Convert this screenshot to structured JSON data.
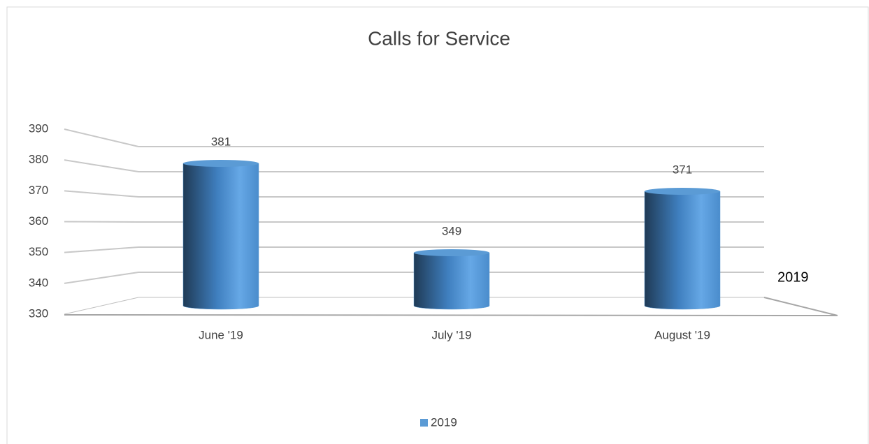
{
  "chart_data": {
    "type": "bar3d",
    "title": "Calls for Service",
    "categories": [
      "June '19",
      "July '19",
      "August '19"
    ],
    "series": [
      {
        "name": "2019",
        "color": "#5b9bd5",
        "values": [
          381,
          349,
          371
        ]
      }
    ],
    "ylim": [
      330,
      390
    ],
    "yticks": [
      330,
      340,
      350,
      360,
      370,
      380,
      390
    ],
    "grid": true,
    "legend": "bottom"
  }
}
